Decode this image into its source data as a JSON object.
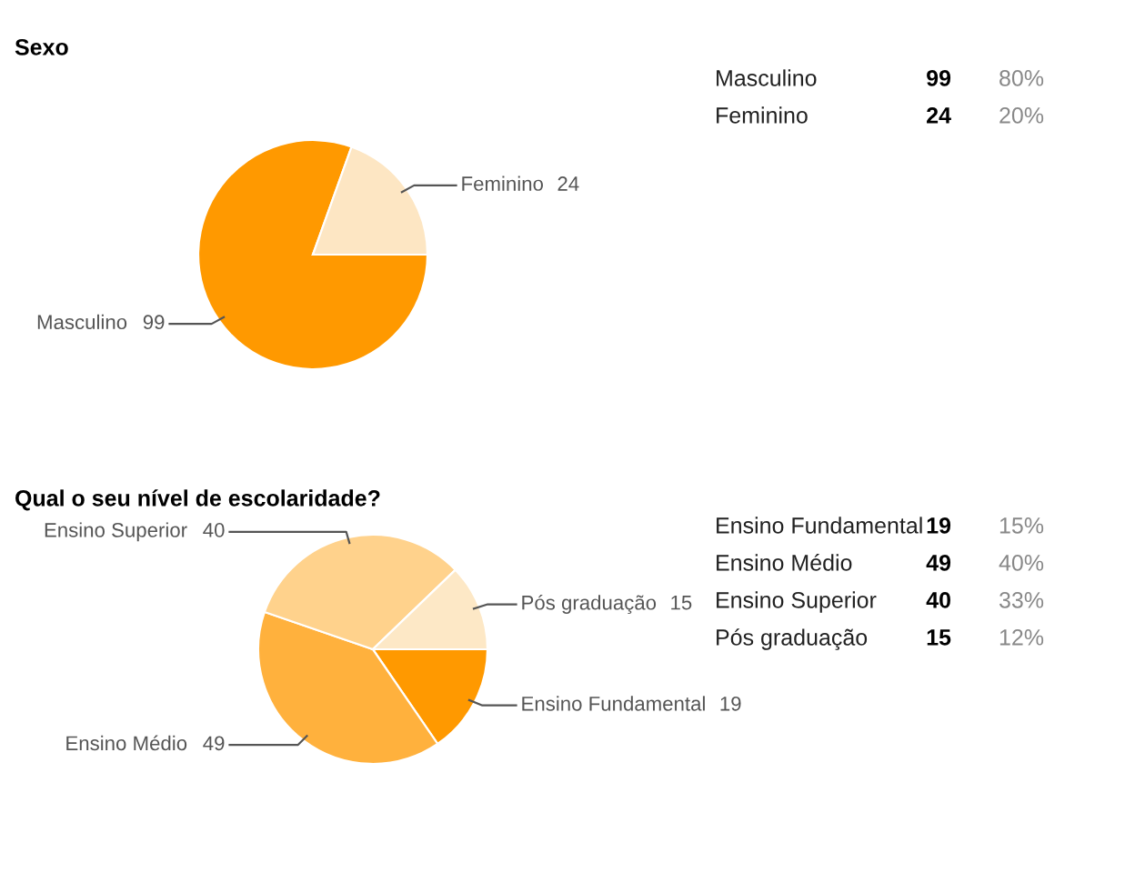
{
  "chart_data": [
    {
      "type": "pie",
      "title": "Sexo",
      "categories": [
        "Masculino",
        "Feminino"
      ],
      "values": [
        99,
        24
      ],
      "colors": [
        "#ff9900",
        "#fde6c3"
      ],
      "data_labels": true
    },
    {
      "type": "other",
      "annotations": [
        "Masculino",
        "99",
        "80%",
        "Feminino",
        "24",
        "20%"
      ]
    },
    {
      "type": "pie",
      "title": "Qual o seu nível de escolaridade?",
      "categories": [
        "Ensino Fundamental",
        "Ensino Médio",
        "Ensino Superior",
        "Pós graduação"
      ],
      "values": [
        19,
        49,
        40,
        15
      ],
      "colors": [
        "#ff9900",
        "#ffb13d",
        "#ffd28c",
        "#fde8c6"
      ],
      "data_labels": true
    },
    {
      "type": "other",
      "annotations": [
        "Ensino Fundamental",
        "19",
        "15%",
        "Ensino Médio",
        "49",
        "40%",
        "Ensino Superior",
        "40",
        "33%",
        "Pós graduação",
        "15",
        "12%"
      ]
    }
  ]
}
